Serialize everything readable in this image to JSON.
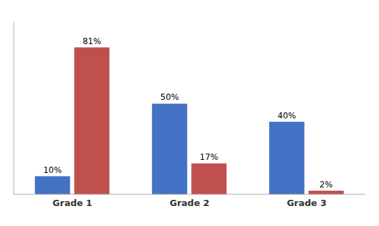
{
  "chart_data": {
    "type": "bar",
    "categories": [
      "Grade 1",
      "Grade 2",
      "Grade 3"
    ],
    "series": [
      {
        "color": "#4472C4",
        "values": [
          10,
          50,
          40
        ],
        "value_labels": [
          "10%",
          "50%",
          "40%"
        ]
      },
      {
        "color": "#C0504D",
        "values": [
          81,
          17,
          2
        ],
        "value_labels": [
          "81%",
          "17%",
          "2%"
        ]
      }
    ],
    "ylim": [
      0,
      95
    ],
    "data_labels": true,
    "grid": false,
    "tick_labels": "x"
  }
}
